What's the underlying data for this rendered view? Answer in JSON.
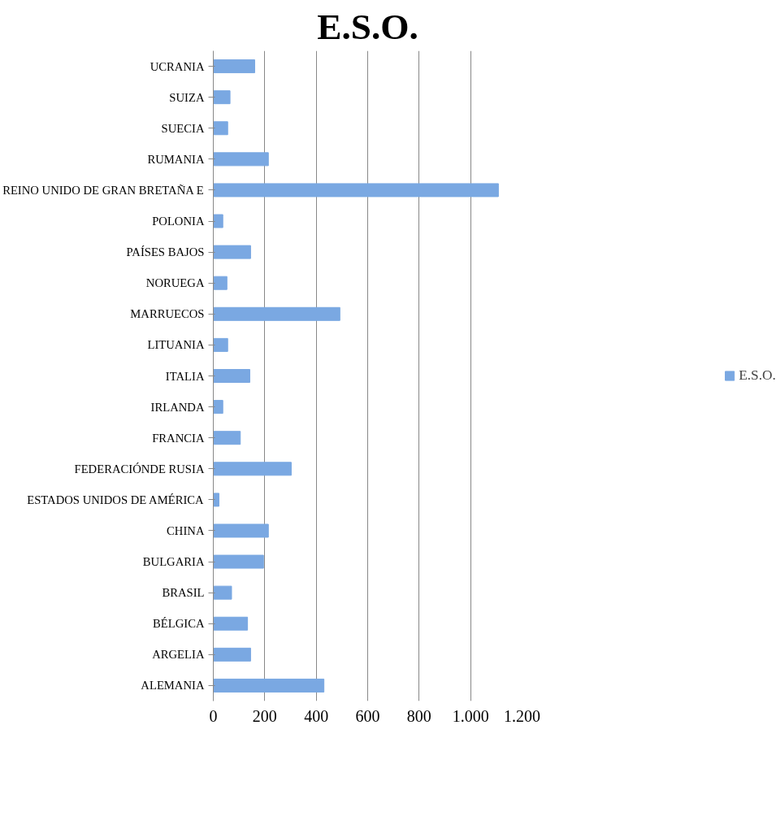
{
  "chart_data": {
    "type": "bar",
    "title": "E.S.O.",
    "orientation": "horizontal",
    "categories": [
      "UCRANIA",
      "SUIZA",
      "SUECIA",
      "RUMANIA",
      "REINO UNIDO DE GRAN BRETAÑA E",
      "POLONIA",
      "PAÍSES BAJOS",
      "NORUEGA",
      "MARRUECOS",
      "LITUANIA",
      "ITALIA",
      "IRLANDA",
      "FRANCIA",
      "FEDERACIÓNDE RUSIA",
      "ESTADOS UNIDOS DE AMÉRICA",
      "CHINA",
      "BULGARIA",
      "BRASIL",
      "BÉLGICA",
      "ARGELIA",
      "ALEMANIA"
    ],
    "series": [
      {
        "name": "E.S.O.",
        "color": "#7aa8e2",
        "values": [
          161,
          65,
          56,
          214,
          1108,
          37,
          145,
          53,
          492,
          56,
          142,
          37,
          105,
          303,
          22,
          214,
          195,
          71,
          133,
          145,
          430
        ]
      }
    ],
    "xlim": [
      0,
      1200
    ],
    "xticks": [
      0,
      200,
      400,
      600,
      800,
      {
        "value": 1000,
        "label": "1.000"
      },
      {
        "value": 1200,
        "label": "1.200"
      }
    ],
    "grid": "x",
    "legend": "right"
  }
}
